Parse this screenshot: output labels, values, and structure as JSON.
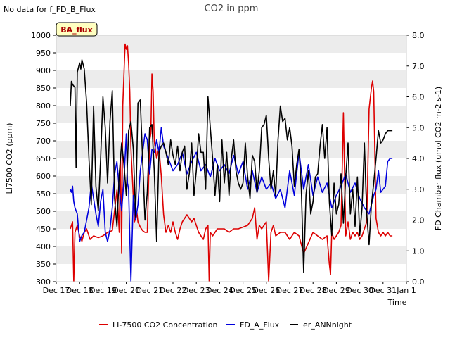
{
  "notice": "No data for f_FD_B_Flux",
  "chart_data": {
    "type": "line",
    "title": "CO2 in ppm",
    "xlabel": "Time",
    "ylabel_left": "LI7500 CO2 (ppm)",
    "ylabel_right": "FD Chamber flux (umol CO2 m-2 s-1)",
    "badge": "BA_flux",
    "grid": "horizontal bands",
    "legend_placement": "bottom",
    "x_ticks": [
      "Dec 17",
      "Dec 18",
      "Dec 19",
      "Dec 20",
      "Dec 21",
      "Dec 22",
      "Dec 23",
      "Dec 24",
      "Dec 25",
      "Dec 26",
      "Dec 27",
      "Dec 28",
      "Dec 29",
      "Dec 30",
      "Dec 31",
      "Jan 1"
    ],
    "xlim": [
      0,
      15
    ],
    "ylim_left": [
      300,
      1000
    ],
    "yticks_left": [
      300,
      350,
      400,
      450,
      500,
      550,
      600,
      650,
      700,
      750,
      800,
      850,
      900,
      950,
      1000
    ],
    "ylim_right": [
      0.0,
      8.0
    ],
    "yticks_right": [
      "0.0",
      "1.0",
      "2.0",
      "3.0",
      "4.0",
      "5.0",
      "6.0",
      "7.0",
      "8.0"
    ],
    "series": [
      {
        "name": "LI-7500 CO2 Concentration",
        "axis": "left",
        "color": "#dd0000",
        "x": [
          0.6,
          0.7,
          0.75,
          0.8,
          0.9,
          1.0,
          1.1,
          1.2,
          1.3,
          1.45,
          1.6,
          1.8,
          2.0,
          2.2,
          2.4,
          2.6,
          2.7,
          2.75,
          2.8,
          2.85,
          2.95,
          3.0,
          3.05,
          3.1,
          3.15,
          3.2,
          3.3,
          3.35,
          3.4,
          3.45,
          3.5,
          3.6,
          3.7,
          3.8,
          3.9,
          4.0,
          4.05,
          4.1,
          4.15,
          4.2,
          4.3,
          4.4,
          4.5,
          4.6,
          4.7,
          4.8,
          4.9,
          5.0,
          5.1,
          5.2,
          5.3,
          5.4,
          5.5,
          5.6,
          5.7,
          5.8,
          5.9,
          6.0,
          6.1,
          6.2,
          6.3,
          6.4,
          6.5,
          6.55,
          6.6,
          6.7,
          6.8,
          6.9,
          7.0,
          7.2,
          7.4,
          7.6,
          7.8,
          8.0,
          8.2,
          8.4,
          8.5,
          8.6,
          8.7,
          8.8,
          9.0,
          9.1,
          9.2,
          9.3,
          9.4,
          9.6,
          9.8,
          10.0,
          10.2,
          10.4,
          10.6,
          10.8,
          11.0,
          11.2,
          11.4,
          11.6,
          11.7,
          11.75,
          11.8,
          11.9,
          12.0,
          12.1,
          12.2,
          12.3,
          12.4,
          12.5,
          12.6,
          12.7,
          12.8,
          12.9,
          13.0,
          13.1,
          13.2,
          13.3,
          13.4,
          13.5,
          13.55,
          13.6,
          13.7,
          13.8,
          13.9,
          14.0,
          14.1,
          14.2,
          14.3,
          14.4
        ],
        "values": [
          450,
          470,
          300,
          440,
          460,
          430,
          415,
          440,
          450,
          420,
          430,
          425,
          430,
          440,
          445,
          560,
          440,
          660,
          380,
          800,
          975,
          960,
          970,
          920,
          840,
          680,
          540,
          470,
          480,
          500,
          470,
          455,
          445,
          440,
          440,
          700,
          720,
          890,
          840,
          700,
          650,
          680,
          600,
          490,
          440,
          460,
          440,
          470,
          440,
          420,
          450,
          470,
          480,
          490,
          480,
          470,
          480,
          460,
          440,
          430,
          420,
          450,
          460,
          300,
          440,
          430,
          440,
          450,
          450,
          450,
          440,
          450,
          450,
          455,
          460,
          480,
          510,
          420,
          460,
          450,
          470,
          300,
          440,
          460,
          430,
          440,
          440,
          420,
          440,
          430,
          380,
          410,
          440,
          430,
          420,
          430,
          350,
          320,
          440,
          420,
          430,
          440,
          460,
          780,
          430,
          470,
          420,
          440,
          430,
          440,
          420,
          430,
          450,
          470,
          790,
          850,
          870,
          840,
          480,
          440,
          430,
          440,
          430,
          440,
          430,
          430
        ]
      },
      {
        "name": "FD_A_Flux",
        "axis": "right",
        "color": "#0000dd",
        "x": [
          0.6,
          0.65,
          0.7,
          0.75,
          0.8,
          0.9,
          1.0,
          1.1,
          1.2,
          1.3,
          1.4,
          1.5,
          1.6,
          1.7,
          1.8,
          1.9,
          2.0,
          2.1,
          2.2,
          2.3,
          2.4,
          2.5,
          2.6,
          2.7,
          2.8,
          2.9,
          3.0,
          3.05,
          3.1,
          3.2,
          3.3,
          3.4,
          3.5,
          3.6,
          3.7,
          3.8,
          3.9,
          4.0,
          4.1,
          4.2,
          4.3,
          4.4,
          4.5,
          4.6,
          4.8,
          5.0,
          5.2,
          5.4,
          5.6,
          5.8,
          6.0,
          6.2,
          6.4,
          6.6,
          6.8,
          7.0,
          7.2,
          7.4,
          7.6,
          7.8,
          8.0,
          8.2,
          8.4,
          8.6,
          8.8,
          9.0,
          9.2,
          9.4,
          9.6,
          9.8,
          10.0,
          10.2,
          10.4,
          10.6,
          10.8,
          11.0,
          11.2,
          11.4,
          11.6,
          11.8,
          12.0,
          12.2,
          12.4,
          12.6,
          12.8,
          13.0,
          13.2,
          13.4,
          13.6,
          13.7,
          13.8,
          13.9,
          14.0,
          14.1,
          14.2,
          14.3,
          14.4
        ],
        "values": [
          3.0,
          2.9,
          3.1,
          2.6,
          2.4,
          2.2,
          1.3,
          1.5,
          1.6,
          2.0,
          2.4,
          3.2,
          2.7,
          2.2,
          1.8,
          2.6,
          3.0,
          1.6,
          1.3,
          1.7,
          2.4,
          3.5,
          3.9,
          3.0,
          2.3,
          3.3,
          4.8,
          3.2,
          3.0,
          0.0,
          2.8,
          2.0,
          2.5,
          3.6,
          4.2,
          4.8,
          4.6,
          3.5,
          4.3,
          4.2,
          4.6,
          4.2,
          5.0,
          4.4,
          4.0,
          3.6,
          3.8,
          4.2,
          3.5,
          3.9,
          4.2,
          3.6,
          3.8,
          3.4,
          4.0,
          3.6,
          3.8,
          3.5,
          4.1,
          3.5,
          3.9,
          3.0,
          3.6,
          2.9,
          3.4,
          3.0,
          3.2,
          2.7,
          3.0,
          2.4,
          3.6,
          2.8,
          4.2,
          3.0,
          3.8,
          2.8,
          3.4,
          2.9,
          3.2,
          2.4,
          2.8,
          3.1,
          3.5,
          2.9,
          3.2,
          2.7,
          2.4,
          2.2,
          2.8,
          3.0,
          3.6,
          2.9,
          3.0,
          3.1,
          3.9,
          4.0,
          4.0
        ]
      },
      {
        "name": "er_ANNnight",
        "axis": "right",
        "color": "#000000",
        "x": [
          0.6,
          0.65,
          0.7,
          0.8,
          0.85,
          0.9,
          1.0,
          1.05,
          1.1,
          1.2,
          1.3,
          1.4,
          1.5,
          1.6,
          1.7,
          1.8,
          1.9,
          2.0,
          2.1,
          2.2,
          2.3,
          2.4,
          2.5,
          2.6,
          2.7,
          2.8,
          2.9,
          3.0,
          3.1,
          3.2,
          3.3,
          3.4,
          3.5,
          3.6,
          3.7,
          3.8,
          3.9,
          4.0,
          4.1,
          4.2,
          4.3,
          4.4,
          4.5,
          4.6,
          4.7,
          4.8,
          4.9,
          5.0,
          5.1,
          5.2,
          5.3,
          5.4,
          5.5,
          5.6,
          5.7,
          5.8,
          5.9,
          6.0,
          6.1,
          6.2,
          6.3,
          6.4,
          6.5,
          6.6,
          6.7,
          6.8,
          6.9,
          7.0,
          7.1,
          7.2,
          7.3,
          7.4,
          7.5,
          7.6,
          7.7,
          7.8,
          7.9,
          8.0,
          8.1,
          8.2,
          8.3,
          8.4,
          8.5,
          8.6,
          8.7,
          8.8,
          8.9,
          9.0,
          9.1,
          9.2,
          9.3,
          9.4,
          9.5,
          9.6,
          9.7,
          9.8,
          9.9,
          10.0,
          10.1,
          10.2,
          10.3,
          10.4,
          10.5,
          10.6,
          10.7,
          10.8,
          10.9,
          11.0,
          11.1,
          11.2,
          11.3,
          11.4,
          11.5,
          11.6,
          11.7,
          11.8,
          11.9,
          12.0,
          12.1,
          12.2,
          12.3,
          12.4,
          12.5,
          12.6,
          12.7,
          12.8,
          12.9,
          13.0,
          13.1,
          13.2,
          13.3,
          13.4,
          13.5,
          13.6,
          13.7,
          13.8,
          13.9,
          14.0,
          14.1,
          14.2,
          14.3,
          14.4
        ],
        "values": [
          5.7,
          6.5,
          6.4,
          6.3,
          3.7,
          6.8,
          7.1,
          6.9,
          7.2,
          6.9,
          5.8,
          4.0,
          2.5,
          5.7,
          3.1,
          2.3,
          4.0,
          6.0,
          5.0,
          3.2,
          5.2,
          6.2,
          2.7,
          1.8,
          3.5,
          4.5,
          3.8,
          2.8,
          4.9,
          5.2,
          4.3,
          2.1,
          5.8,
          5.9,
          4.0,
          2.0,
          2.9,
          5.0,
          5.1,
          3.6,
          1.3,
          4.2,
          4.4,
          4.5,
          4.2,
          3.8,
          4.6,
          4.1,
          3.8,
          4.4,
          3.6,
          4.2,
          4.4,
          3.0,
          3.5,
          4.5,
          2.8,
          3.6,
          4.8,
          4.2,
          4.2,
          3.0,
          6.0,
          5.0,
          4.0,
          2.8,
          3.8,
          2.6,
          4.6,
          3.2,
          4.2,
          2.8,
          4.0,
          4.6,
          3.6,
          3.2,
          3.0,
          3.2,
          4.5,
          3.4,
          2.7,
          4.1,
          3.9,
          2.9,
          3.6,
          5.0,
          5.1,
          5.4,
          4.0,
          3.0,
          3.6,
          2.8,
          4.6,
          5.7,
          5.2,
          5.3,
          4.6,
          5.0,
          4.4,
          3.1,
          3.8,
          4.3,
          3.0,
          0.3,
          2.8,
          3.6,
          2.2,
          2.6,
          3.4,
          3.5,
          4.4,
          5.1,
          4.0,
          5.0,
          2.6,
          1.5,
          3.2,
          2.2,
          2.5,
          3.5,
          1.9,
          3.4,
          4.5,
          2.2,
          3.0,
          1.8,
          3.4,
          1.5,
          2.4,
          4.5,
          2.2,
          1.2,
          2.5,
          3.2,
          4.0,
          4.9,
          4.5,
          4.6,
          4.8,
          4.9,
          4.9,
          4.9
        ]
      }
    ]
  }
}
